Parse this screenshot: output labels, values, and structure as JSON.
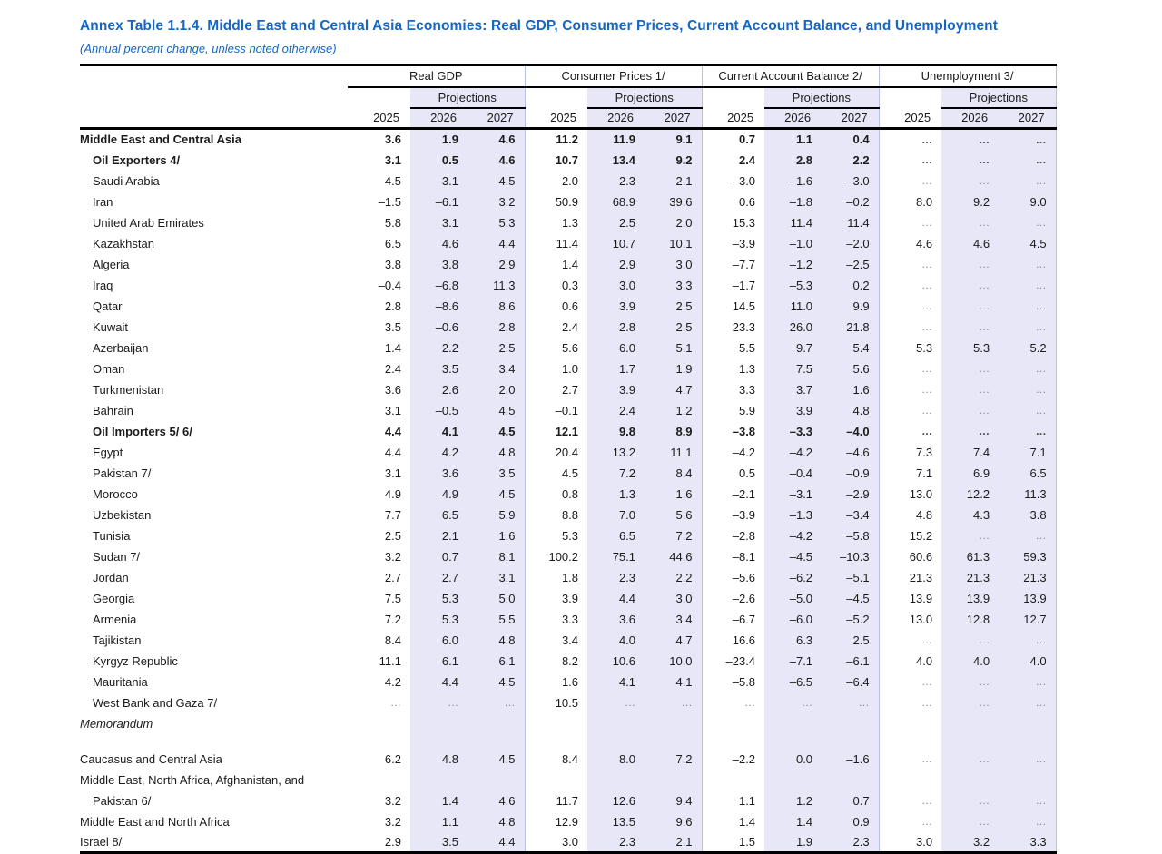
{
  "header": {
    "title": "Annex Table 1.1.4. Middle East and Central Asia Economies: Real GDP, Consumer Prices, Current Account Balance, and Unemployment",
    "subtitle": "(Annual percent change, unless noted otherwise)"
  },
  "table": {
    "groups": [
      {
        "label": "Real GDP"
      },
      {
        "label": "Consumer Prices 1/"
      },
      {
        "label": "Current Account Balance 2/"
      },
      {
        "label": "Unemployment 3/"
      }
    ],
    "projections_label": "Projections",
    "years": [
      "2025",
      "2026",
      "2027"
    ],
    "colors": {
      "projection_band": "#e7e7f8",
      "group_separator_line": "#b9c0e3",
      "title_blue": "#1467c5"
    },
    "rows": [
      {
        "label": "Middle East and Central Asia",
        "bold": true,
        "indent": 0,
        "values": [
          "3.6",
          "1.9",
          "4.6",
          "11.2",
          "11.9",
          "9.1",
          "0.7",
          "1.1",
          "0.4",
          "...",
          "...",
          "..."
        ]
      },
      {
        "label": "Oil Exporters 4/",
        "bold": true,
        "indent": 1,
        "values": [
          "3.1",
          "0.5",
          "4.6",
          "10.7",
          "13.4",
          "9.2",
          "2.4",
          "2.8",
          "2.2",
          "...",
          "...",
          "..."
        ]
      },
      {
        "label": "Saudi Arabia",
        "indent": 1,
        "values": [
          "4.5",
          "3.1",
          "4.5",
          "2.0",
          "2.3",
          "2.1",
          "–3.0",
          "–1.6",
          "–3.0",
          "...",
          "...",
          "..."
        ]
      },
      {
        "label": "Iran",
        "indent": 1,
        "values": [
          "–1.5",
          "–6.1",
          "3.2",
          "50.9",
          "68.9",
          "39.6",
          "0.6",
          "–1.8",
          "–0.2",
          "8.0",
          "9.2",
          "9.0"
        ]
      },
      {
        "label": "United Arab Emirates",
        "indent": 1,
        "values": [
          "5.8",
          "3.1",
          "5.3",
          "1.3",
          "2.5",
          "2.0",
          "15.3",
          "11.4",
          "11.4",
          "...",
          "...",
          "..."
        ]
      },
      {
        "label": "Kazakhstan",
        "indent": 1,
        "values": [
          "6.5",
          "4.6",
          "4.4",
          "11.4",
          "10.7",
          "10.1",
          "–3.9",
          "–1.0",
          "–2.0",
          "4.6",
          "4.6",
          "4.5"
        ]
      },
      {
        "label": "Algeria",
        "indent": 1,
        "values": [
          "3.8",
          "3.8",
          "2.9",
          "1.4",
          "2.9",
          "3.0",
          "–7.7",
          "–1.2",
          "–2.5",
          "...",
          "...",
          "..."
        ]
      },
      {
        "label": "Iraq",
        "indent": 1,
        "values": [
          "–0.4",
          "–6.8",
          "11.3",
          "0.3",
          "3.0",
          "3.3",
          "–1.7",
          "–5.3",
          "0.2",
          "...",
          "...",
          "..."
        ]
      },
      {
        "label": "Qatar",
        "indent": 1,
        "values": [
          "2.8",
          "–8.6",
          "8.6",
          "0.6",
          "3.9",
          "2.5",
          "14.5",
          "11.0",
          "9.9",
          "...",
          "...",
          "..."
        ]
      },
      {
        "label": "Kuwait",
        "indent": 1,
        "values": [
          "3.5",
          "–0.6",
          "2.8",
          "2.4",
          "2.8",
          "2.5",
          "23.3",
          "26.0",
          "21.8",
          "...",
          "...",
          "..."
        ]
      },
      {
        "label": "Azerbaijan",
        "indent": 1,
        "values": [
          "1.4",
          "2.2",
          "2.5",
          "5.6",
          "6.0",
          "5.1",
          "5.5",
          "9.7",
          "5.4",
          "5.3",
          "5.3",
          "5.2"
        ]
      },
      {
        "label": "Oman",
        "indent": 1,
        "values": [
          "2.4",
          "3.5",
          "3.4",
          "1.0",
          "1.7",
          "1.9",
          "1.3",
          "7.5",
          "5.6",
          "...",
          "...",
          "..."
        ]
      },
      {
        "label": "Turkmenistan",
        "indent": 1,
        "values": [
          "3.6",
          "2.6",
          "2.0",
          "2.7",
          "3.9",
          "4.7",
          "3.3",
          "3.7",
          "1.6",
          "...",
          "...",
          "..."
        ]
      },
      {
        "label": "Bahrain",
        "indent": 1,
        "values": [
          "3.1",
          "–0.5",
          "4.5",
          "–0.1",
          "2.4",
          "1.2",
          "5.9",
          "3.9",
          "4.8",
          "...",
          "...",
          "..."
        ]
      },
      {
        "label": "Oil Importers 5/ 6/",
        "bold": true,
        "indent": 1,
        "values": [
          "4.4",
          "4.1",
          "4.5",
          "12.1",
          "9.8",
          "8.9",
          "–3.8",
          "–3.3",
          "–4.0",
          "...",
          "...",
          "..."
        ]
      },
      {
        "label": "Egypt",
        "indent": 1,
        "values": [
          "4.4",
          "4.2",
          "4.8",
          "20.4",
          "13.2",
          "11.1",
          "–4.2",
          "–4.2",
          "–4.6",
          "7.3",
          "7.4",
          "7.1"
        ]
      },
      {
        "label": "Pakistan 7/",
        "indent": 1,
        "values": [
          "3.1",
          "3.6",
          "3.5",
          "4.5",
          "7.2",
          "8.4",
          "0.5",
          "–0.4",
          "–0.9",
          "7.1",
          "6.9",
          "6.5"
        ]
      },
      {
        "label": "Morocco",
        "indent": 1,
        "values": [
          "4.9",
          "4.9",
          "4.5",
          "0.8",
          "1.3",
          "1.6",
          "–2.1",
          "–3.1",
          "–2.9",
          "13.0",
          "12.2",
          "11.3"
        ]
      },
      {
        "label": "Uzbekistan",
        "indent": 1,
        "values": [
          "7.7",
          "6.5",
          "5.9",
          "8.8",
          "7.0",
          "5.6",
          "–3.9",
          "–1.3",
          "–3.4",
          "4.8",
          "4.3",
          "3.8"
        ]
      },
      {
        "label": "Tunisia",
        "indent": 1,
        "values": [
          "2.5",
          "2.1",
          "1.6",
          "5.3",
          "6.5",
          "7.2",
          "–2.8",
          "–4.2",
          "–5.8",
          "15.2",
          "...",
          "..."
        ]
      },
      {
        "label": "Sudan 7/",
        "indent": 1,
        "values": [
          "3.2",
          "0.7",
          "8.1",
          "100.2",
          "75.1",
          "44.6",
          "–8.1",
          "–4.5",
          "–10.3",
          "60.6",
          "61.3",
          "59.3"
        ]
      },
      {
        "label": "Jordan",
        "indent": 1,
        "values": [
          "2.7",
          "2.7",
          "3.1",
          "1.8",
          "2.3",
          "2.2",
          "–5.6",
          "–6.2",
          "–5.1",
          "21.3",
          "21.3",
          "21.3"
        ]
      },
      {
        "label": "Georgia",
        "indent": 1,
        "values": [
          "7.5",
          "5.3",
          "5.0",
          "3.9",
          "4.4",
          "3.0",
          "–2.6",
          "–5.0",
          "–4.5",
          "13.9",
          "13.9",
          "13.9"
        ]
      },
      {
        "label": "Armenia",
        "indent": 1,
        "values": [
          "7.2",
          "5.3",
          "5.5",
          "3.3",
          "3.6",
          "3.4",
          "–6.7",
          "–6.0",
          "–5.2",
          "13.0",
          "12.8",
          "12.7"
        ]
      },
      {
        "label": "Tajikistan",
        "indent": 1,
        "values": [
          "8.4",
          "6.0",
          "4.8",
          "3.4",
          "4.0",
          "4.7",
          "16.6",
          "6.3",
          "2.5",
          "...",
          "...",
          "..."
        ]
      },
      {
        "label": "Kyrgyz Republic",
        "indent": 1,
        "values": [
          "11.1",
          "6.1",
          "6.1",
          "8.2",
          "10.6",
          "10.0",
          "–23.4",
          "–7.1",
          "–6.1",
          "4.0",
          "4.0",
          "4.0"
        ]
      },
      {
        "label": "Mauritania",
        "indent": 1,
        "values": [
          "4.2",
          "4.4",
          "4.5",
          "1.6",
          "4.1",
          "4.1",
          "–5.8",
          "–6.5",
          "–6.4",
          "...",
          "...",
          "..."
        ]
      },
      {
        "label": "West Bank and Gaza 7/",
        "indent": 1,
        "values": [
          "...",
          "...",
          "...",
          "10.5",
          "...",
          "...",
          "...",
          "...",
          "...",
          "...",
          "...",
          "..."
        ]
      },
      {
        "label": "Memorandum",
        "italic": true,
        "indent": 0,
        "values": []
      },
      {
        "spacer": true
      },
      {
        "label": "Caucasus and Central Asia",
        "indent": 0,
        "values": [
          "6.2",
          "4.8",
          "4.5",
          "8.4",
          "8.0",
          "7.2",
          "–2.2",
          "0.0",
          "–1.6",
          "...",
          "...",
          "..."
        ]
      },
      {
        "label": "Middle East, North Africa, Afghanistan, and",
        "indent": 0,
        "values": []
      },
      {
        "label": "Pakistan 6/",
        "indent": 1,
        "values": [
          "3.2",
          "1.4",
          "4.6",
          "11.7",
          "12.6",
          "9.4",
          "1.1",
          "1.2",
          "0.7",
          "...",
          "...",
          "..."
        ]
      },
      {
        "label": "Middle East and North Africa",
        "indent": 0,
        "values": [
          "3.2",
          "1.1",
          "4.8",
          "12.9",
          "13.5",
          "9.6",
          "1.4",
          "1.4",
          "0.9",
          "...",
          "...",
          "..."
        ]
      },
      {
        "label": "Israel 8/",
        "indent": 0,
        "values": [
          "2.9",
          "3.5",
          "4.4",
          "3.0",
          "2.3",
          "2.1",
          "1.5",
          "1.9",
          "2.3",
          "3.0",
          "3.2",
          "3.3"
        ]
      }
    ]
  }
}
